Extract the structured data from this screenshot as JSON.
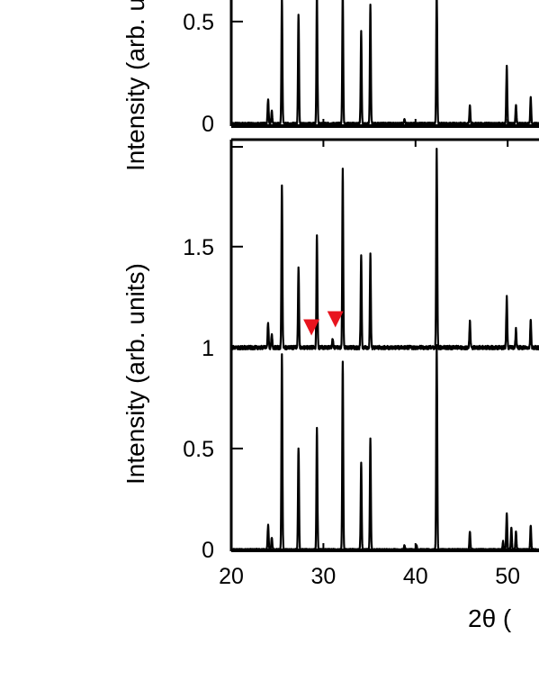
{
  "chart_data": [
    {
      "type": "line",
      "panel": "top (cropped)",
      "ylabel": "Intensity (arb. units)",
      "y_tick_labels": [
        "0",
        "0.5"
      ],
      "y_ticks": [
        0,
        0.5
      ],
      "ylim": [
        0,
        0.65
      ],
      "series": [
        {
          "peaks": [
            [
              24.0,
              0.12
            ],
            [
              24.4,
              0.06
            ],
            [
              25.5,
              0.62
            ],
            [
              27.3,
              0.53
            ],
            [
              29.3,
              0.65
            ],
            [
              32.1,
              0.65
            ],
            [
              34.1,
              0.45
            ],
            [
              35.1,
              0.58
            ],
            [
              38.8,
              0.02
            ],
            [
              42.3,
              0.65
            ],
            [
              45.9,
              0.09
            ],
            [
              49.9,
              0.28
            ],
            [
              50.9,
              0.09
            ],
            [
              52.5,
              0.13
            ]
          ],
          "color": "#000000"
        }
      ]
    },
    {
      "type": "line",
      "panel": "bottom",
      "ylabel": "Intensity (arb. units)",
      "xlabel": "2θ (",
      "x_tick_labels": [
        "20",
        "30",
        "40",
        "50"
      ],
      "x_ticks": [
        20,
        30,
        40,
        50
      ],
      "xlim": [
        20,
        53.4
      ],
      "y_tick_labels": [
        "0",
        "0.5",
        "1",
        "1.5"
      ],
      "y_ticks": [
        0,
        0.5,
        1,
        1.5
      ],
      "ylim": [
        0,
        2.03
      ],
      "series": [
        {
          "offset": 1.0,
          "peaks": [
            [
              24.0,
              0.12
            ],
            [
              24.4,
              0.06
            ],
            [
              25.5,
              0.81
            ],
            [
              27.3,
              0.39
            ],
            [
              29.3,
              0.56
            ],
            [
              31.0,
              0.05
            ],
            [
              32.1,
              0.88
            ],
            [
              34.1,
              0.46
            ],
            [
              35.1,
              0.46
            ],
            [
              42.3,
              0.98
            ],
            [
              45.9,
              0.13
            ],
            [
              49.9,
              0.25
            ],
            [
              50.9,
              0.09
            ],
            [
              52.5,
              0.14
            ]
          ],
          "color": "#000000"
        },
        {
          "offset": 0.0,
          "peaks": [
            [
              24.0,
              0.12
            ],
            [
              24.4,
              0.06
            ],
            [
              25.5,
              0.97
            ],
            [
              27.3,
              0.5
            ],
            [
              29.3,
              0.6
            ],
            [
              32.1,
              0.93
            ],
            [
              34.1,
              0.43
            ],
            [
              35.1,
              0.55
            ],
            [
              38.8,
              0.02
            ],
            [
              40.1,
              0.02
            ],
            [
              42.3,
              1.01
            ],
            [
              45.9,
              0.09
            ],
            [
              49.5,
              0.04
            ],
            [
              49.9,
              0.18
            ],
            [
              50.4,
              0.11
            ],
            [
              50.9,
              0.09
            ],
            [
              52.5,
              0.12
            ]
          ],
          "color": "#000000"
        }
      ],
      "annotations": [
        {
          "shape": "down-triangle",
          "x": 28.7,
          "y": 1.1,
          "color": "#e8141e"
        },
        {
          "shape": "down-triangle",
          "x": 31.3,
          "y": 1.14,
          "color": "#e8141e"
        }
      ]
    }
  ],
  "colors": {
    "axis": "#000000",
    "marker": "#e8141e"
  }
}
